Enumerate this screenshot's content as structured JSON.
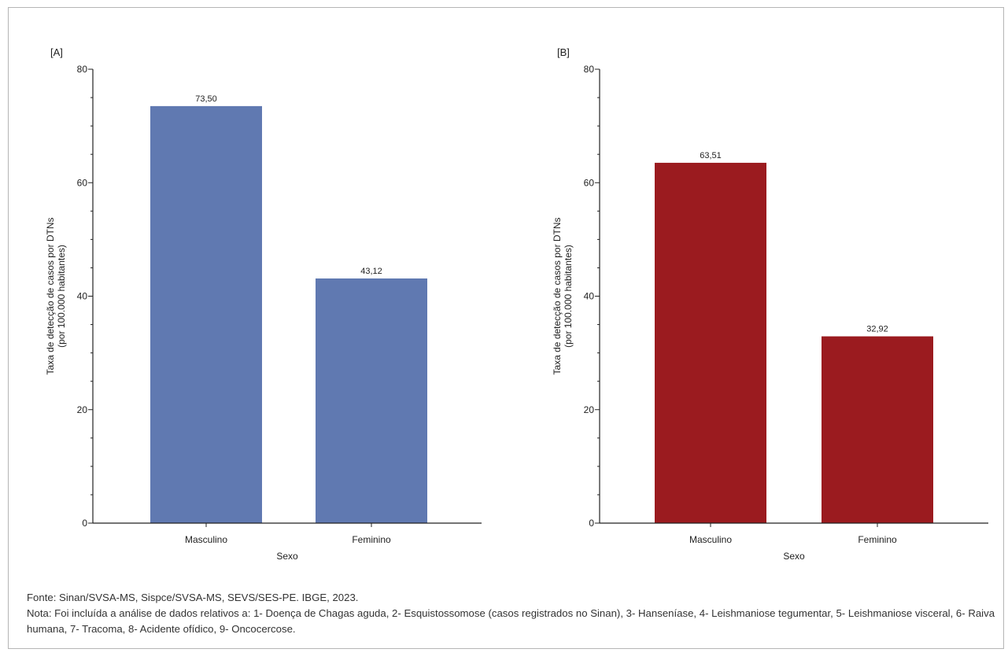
{
  "chart_data": [
    {
      "type": "bar",
      "panel_label": "[A]",
      "categories": [
        "Masculino",
        "Feminino"
      ],
      "values": [
        73.5,
        43.12
      ],
      "value_labels": [
        "73,50",
        "43,12"
      ],
      "xlabel": "Sexo",
      "ylabel_lines": [
        "Taxa de detecção de casos por DTNs",
        "(por 100.000 habitantes)"
      ],
      "ylim": [
        0,
        80
      ],
      "yticks": [
        0,
        20,
        40,
        60,
        80
      ],
      "bar_color": "#6079b1",
      "grid": false
    },
    {
      "type": "bar",
      "panel_label": "[B]",
      "categories": [
        "Masculino",
        "Feminino"
      ],
      "values": [
        63.51,
        32.92
      ],
      "value_labels": [
        "63,51",
        "32,92"
      ],
      "xlabel": "Sexo",
      "ylabel_lines": [
        "Taxa de detecção de casos por DTNs",
        "(por 100.000 habitantes)"
      ],
      "ylim": [
        0,
        80
      ],
      "yticks": [
        0,
        20,
        40,
        60,
        80
      ],
      "bar_color": "#9b1b1f",
      "grid": false
    }
  ],
  "notes": {
    "source": "Fonte: Sinan/SVSA-MS, Sispce/SVSA-MS, SEVS/SES-PE. IBGE, 2023.",
    "note": "Nota: Foi incluída a análise de dados relativos a: 1- Doença de Chagas aguda, 2- Esquistossomose (casos registrados no Sinan), 3- Hanseníase, 4- Leishmaniose tegumentar, 5- Leishmaniose visceral, 6- Raiva humana, 7- Tracoma, 8- Acidente ofídico, 9- Oncocercose."
  }
}
